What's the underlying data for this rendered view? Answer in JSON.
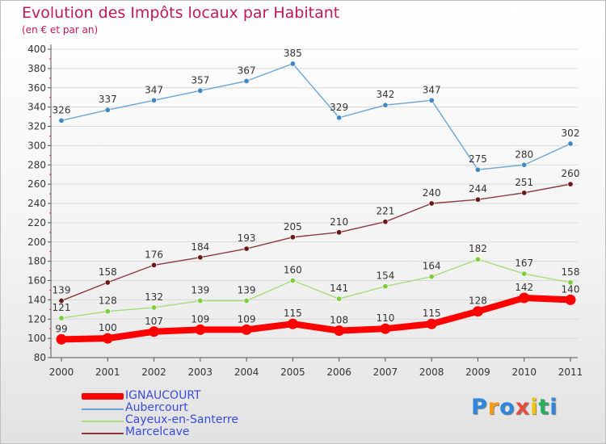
{
  "title": "Evolution des Impôts locaux par Habitant",
  "subtitle": "(en € et par an)",
  "brand": {
    "letters": [
      "P",
      "r",
      "o",
      "x",
      "i",
      "t",
      "i"
    ],
    "colors": [
      "#2e86de",
      "#f39c12",
      "#2e86de",
      "#e74c3c",
      "#f1c40f",
      "#27ae60",
      "#2e86de"
    ]
  },
  "chart_data": {
    "type": "line",
    "title": "Evolution des Impôts locaux par Habitant",
    "subtitle": "(en € et par an)",
    "xlabel": "",
    "ylabel": "",
    "ylim": [
      80,
      400
    ],
    "ytick_step": 20,
    "grid": true,
    "legend_position": "bottom-left",
    "x": [
      "2000",
      "2001",
      "2002",
      "2003",
      "2004",
      "2005",
      "2006",
      "2007",
      "2008",
      "2009",
      "2010",
      "2011"
    ],
    "series": [
      {
        "name": "IGNAUCOURT",
        "color": "#ff0000",
        "highlight": true,
        "values": [
          99,
          100,
          107,
          109,
          109,
          115,
          108,
          110,
          115,
          128,
          142,
          140
        ],
        "value_labels": [
          "99",
          "100",
          "107",
          "109",
          "109",
          "115",
          "108",
          "110",
          "115",
          "128",
          "142",
          "140"
        ]
      },
      {
        "name": "Aubercourt",
        "color": "#6aa4d4",
        "marker": "#3f88c5",
        "highlight": false,
        "values": [
          326,
          337,
          347,
          357,
          367,
          385,
          329,
          342,
          347,
          275,
          280,
          302
        ],
        "value_labels": [
          "326",
          "337",
          "347",
          "357",
          "367",
          "385",
          "329",
          "342",
          "347",
          "275",
          "280",
          "302"
        ]
      },
      {
        "name": "Cayeux-en-Santerre",
        "color": "#a6dd7a",
        "marker": "#7ccd3c",
        "highlight": false,
        "values": [
          121,
          128,
          132,
          139,
          139,
          160,
          141,
          154,
          164,
          182,
          167,
          158
        ],
        "value_labels": [
          "121",
          "128",
          "132",
          "139",
          "139",
          "160",
          "141",
          "154",
          "164",
          "182",
          "167",
          "158"
        ]
      },
      {
        "name": "Marcelcave",
        "color": "#8b3a3a",
        "marker": "#6b1818",
        "highlight": false,
        "values": [
          139,
          158,
          176,
          184,
          193,
          205,
          210,
          221,
          240,
          244,
          251,
          260
        ],
        "value_labels": [
          "139",
          "158",
          "176",
          "184",
          "193",
          "205",
          "210",
          "221",
          "240",
          "244",
          "251",
          "260"
        ]
      }
    ]
  }
}
